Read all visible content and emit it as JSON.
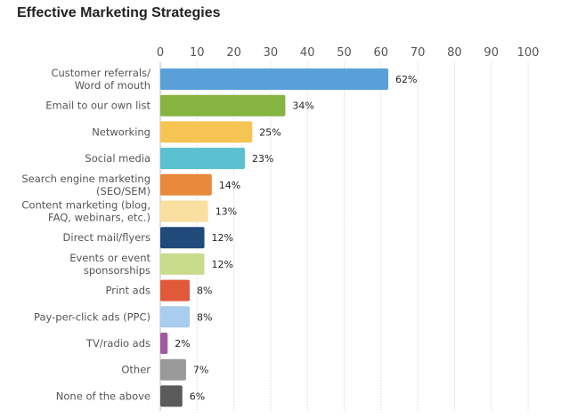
{
  "chart_data": {
    "type": "bar",
    "orientation": "horizontal",
    "title": "Effective Marketing Strategies",
    "xlabel": "",
    "ylabel": "",
    "xlim": [
      0,
      100
    ],
    "xticks": [
      0,
      10,
      20,
      30,
      40,
      50,
      60,
      70,
      80,
      90,
      100
    ],
    "grid": true,
    "categories": [
      [
        "Customer referrals/",
        "Word of mouth"
      ],
      [
        "Email to our own list"
      ],
      [
        "Networking"
      ],
      [
        "Social media"
      ],
      [
        "Search engine marketing",
        "(SEO/SEM)"
      ],
      [
        "Content marketing (blog,",
        "FAQ, webinars, etc.)"
      ],
      [
        "Direct mail/flyers"
      ],
      [
        "Events or event",
        "sponsorships"
      ],
      [
        "Print ads"
      ],
      [
        "Pay-per-click ads (PPC)"
      ],
      [
        "TV/radio ads"
      ],
      [
        "Other"
      ],
      [
        "None of the above"
      ]
    ],
    "values": [
      62,
      34,
      25,
      23,
      14,
      13,
      12,
      12,
      8,
      8,
      2,
      7,
      6
    ],
    "data_labels": [
      "62%",
      "34%",
      "25%",
      "23%",
      "14%",
      "13%",
      "12%",
      "12%",
      "8%",
      "8%",
      "2%",
      "7%",
      "6%"
    ],
    "colors": [
      "#5aa0d8",
      "#86b440",
      "#f5c453",
      "#5bc0cf",
      "#e8883a",
      "#f9dfa0",
      "#1f4a7a",
      "#c8dc8c",
      "#e05a3a",
      "#a8cdee",
      "#a05aa0",
      "#999999",
      "#5a5a5a"
    ]
  }
}
